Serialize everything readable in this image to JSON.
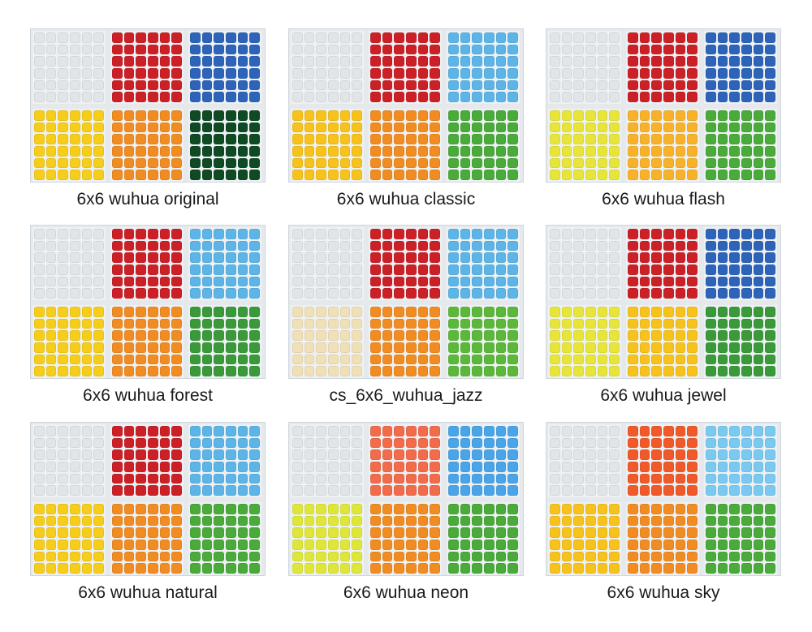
{
  "sets": [
    {
      "caption": "6x6 wuhua original",
      "colors": [
        "#e2e5e8",
        "#cc2027",
        "#2d63b8",
        "#f6cd1b",
        "#f08c22",
        "#0f4a24"
      ]
    },
    {
      "caption": "6x6 wuhua classic",
      "colors": [
        "#e2e5e8",
        "#cc2027",
        "#5cb5e6",
        "#f6c21b",
        "#f08c22",
        "#4aaa3a"
      ]
    },
    {
      "caption": "6x6 wuhua flash",
      "colors": [
        "#e2e5e8",
        "#cc2027",
        "#2d63b8",
        "#e7e53a",
        "#f7b22a",
        "#4aaa3a"
      ]
    },
    {
      "caption": "6x6 wuhua forest",
      "colors": [
        "#e2e5e8",
        "#cc2027",
        "#5cb5e6",
        "#f6cd1b",
        "#f08c22",
        "#3a9a3a"
      ]
    },
    {
      "caption": "cs_6x6_wuhua_jazz",
      "colors": [
        "#e2e5e8",
        "#cc2027",
        "#5cb5e6",
        "#f0e0b8",
        "#f08c22",
        "#5cb83a"
      ]
    },
    {
      "caption": "6x6 wuhua jewel",
      "colors": [
        "#e2e5e8",
        "#cc2027",
        "#2d63b8",
        "#e7e53a",
        "#f6c21b",
        "#3a9a3a"
      ]
    },
    {
      "caption": "6x6 wuhua natural",
      "colors": [
        "#e2e5e8",
        "#cc2027",
        "#5cb5e6",
        "#f6cd1b",
        "#f08c22",
        "#4aaa3a"
      ]
    },
    {
      "caption": "6x6 wuhua neon",
      "colors": [
        "#e2e5e8",
        "#f26b4a",
        "#4aa4e8",
        "#dfe63a",
        "#f08c22",
        "#4aaa3a"
      ]
    },
    {
      "caption": "6x6 wuhua sky",
      "colors": [
        "#e2e5e8",
        "#f05a2a",
        "#7ac9f0",
        "#f6c21b",
        "#f08c22",
        "#4aaa3a"
      ]
    }
  ]
}
